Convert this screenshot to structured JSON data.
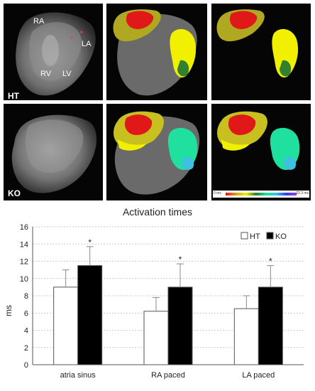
{
  "figure": {
    "row_labels": {
      "top": "HT",
      "bottom": "KO"
    },
    "heart_labels": {
      "ra": "RA",
      "la": "LA",
      "rv": "RV",
      "lv": "LV"
    },
    "colorbar_labels": {
      "left": "0 ms",
      "right": "22.3 ms"
    },
    "map_colors": [
      "#e01818",
      "#c8c020",
      "#6a8a20",
      "#f0f000",
      "#308030",
      "#20e0a0",
      "#40c0e0"
    ]
  },
  "chart_data": {
    "type": "bar",
    "title": "Activation times",
    "ylabel": "ms",
    "xlabel": "",
    "categories": [
      "atria sinus",
      "RA paced",
      "LA paced"
    ],
    "series": [
      {
        "name": "HT",
        "values": [
          9.0,
          6.2,
          6.5
        ],
        "errors": [
          2.0,
          1.6,
          1.5
        ],
        "color": "#ffffff"
      },
      {
        "name": "KO",
        "values": [
          11.5,
          9.0,
          9.0
        ],
        "errors": [
          2.2,
          2.7,
          2.5
        ],
        "color": "#000000"
      }
    ],
    "significance": [
      "*",
      "*",
      "*"
    ],
    "ylim": [
      0,
      16
    ],
    "yticks": [
      0,
      2,
      4,
      6,
      8,
      10,
      12,
      14,
      16
    ],
    "grid": true,
    "legend": "top-right"
  }
}
